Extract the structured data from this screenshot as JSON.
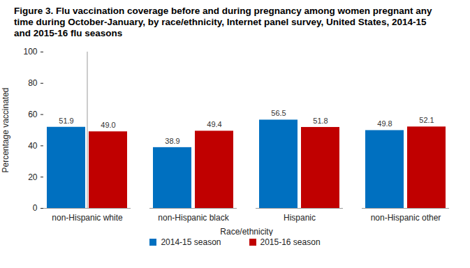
{
  "chart_data": {
    "type": "bar",
    "title": "Figure 3. Flu vaccination coverage before and during pregnancy among women pregnant any time during October-January, by race/ethnicity, Internet panel survey, United States, 2014-15 and 2015-16 flu seasons",
    "x_label": "Race/ethnicity",
    "y_label": "Percentage vaccinated",
    "categories": [
      "non-Hispanic white",
      "non-Hispanic black",
      "Hispanic",
      "non-Hispanic other"
    ],
    "series": [
      {
        "name": "2014-15 season",
        "color": "#0070c0",
        "values": [
          51.9,
          38.9,
          56.5,
          49.8
        ],
        "value_labels": [
          "51.9",
          "38.9",
          "56.5",
          "49.8"
        ]
      },
      {
        "name": "2015-16 season",
        "color": "#c00000",
        "values": [
          49.0,
          49.4,
          51.8,
          52.1
        ],
        "value_labels": [
          "49.0",
          "49.4",
          "51.8",
          "52.1"
        ]
      }
    ],
    "ylim": [
      0,
      100
    ],
    "yticks": [
      0,
      20,
      40,
      60,
      80,
      100
    ],
    "grid": false,
    "legend": "bottom",
    "data_labels": true
  }
}
